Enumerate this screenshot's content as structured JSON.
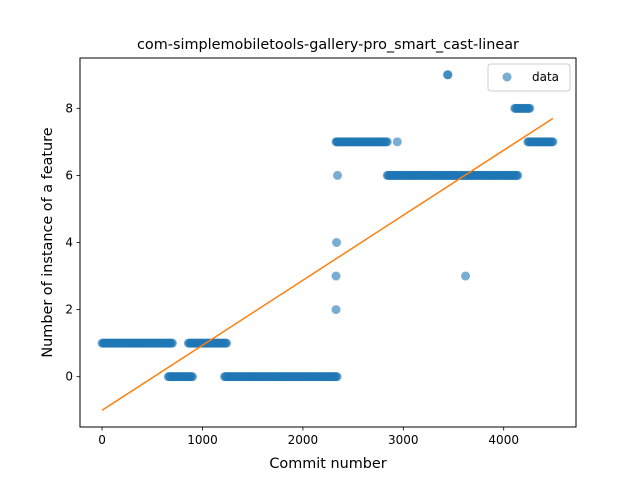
{
  "chart_data": {
    "type": "scatter",
    "title": "com-simplemobiletools-gallery-pro_smart_cast-linear",
    "xlabel": "Commit number",
    "ylabel": "Number of instance of a feature",
    "xlim": [
      -220,
      4720
    ],
    "ylim": [
      -1.5,
      9.5
    ],
    "x_ticks": [
      0,
      1000,
      2000,
      3000,
      4000
    ],
    "y_ticks": [
      0,
      2,
      4,
      6,
      8
    ],
    "grid": false,
    "legend_position": "top-right",
    "colors": {
      "data": "#1f77b4",
      "fit": "#ff7f0e"
    },
    "series": [
      {
        "name": "data",
        "kind": "scatter",
        "segments": [
          {
            "x_start": 0,
            "x_end": 700,
            "y": 1
          },
          {
            "x_start": 660,
            "x_end": 900,
            "y": 0
          },
          {
            "x_start": 860,
            "x_end": 1240,
            "y": 1
          },
          {
            "x_start": 1220,
            "x_end": 2340,
            "y": 0
          },
          {
            "x_start": 2330,
            "x_end": 2840,
            "y": 7
          },
          {
            "x_start": 2840,
            "x_end": 4140,
            "y": 6
          },
          {
            "x_start": 4110,
            "x_end": 4260,
            "y": 8
          },
          {
            "x_start": 4240,
            "x_end": 4490,
            "y": 7
          }
        ],
        "points": [
          {
            "x": 2330,
            "y": 2
          },
          {
            "x": 2330,
            "y": 3
          },
          {
            "x": 2335,
            "y": 4
          },
          {
            "x": 2345,
            "y": 6
          },
          {
            "x": 2340,
            "y": 7
          },
          {
            "x": 2940,
            "y": 7
          },
          {
            "x": 3440,
            "y": 9
          },
          {
            "x": 3445,
            "y": 9
          },
          {
            "x": 3620,
            "y": 3
          }
        ]
      },
      {
        "name": "",
        "kind": "line",
        "x": [
          0,
          4490
        ],
        "y": [
          -1.0,
          7.7
        ]
      }
    ]
  }
}
